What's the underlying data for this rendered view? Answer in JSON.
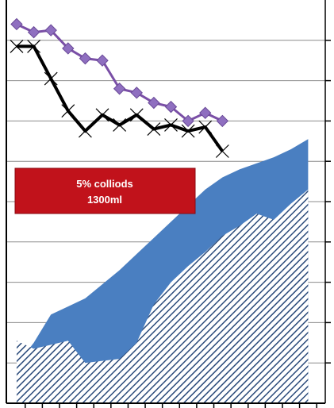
{
  "chart_data": {
    "type": "line",
    "x": [
      1,
      2,
      3,
      4,
      5,
      6,
      7,
      8,
      9,
      10,
      11,
      12,
      13,
      14,
      15,
      16,
      17,
      18
    ],
    "xlim": [
      0.4,
      19
    ],
    "ylim": [
      0,
      10
    ],
    "grid": true,
    "series": [
      {
        "type": "line",
        "color": "#7a4fa6",
        "marker": "diamond",
        "x": [
          1,
          2,
          3,
          4,
          5,
          6,
          7,
          8,
          9,
          10,
          11,
          12,
          13
        ],
        "values": [
          9.4,
          9.2,
          9.25,
          8.8,
          8.55,
          8.5,
          7.8,
          7.7,
          7.45,
          7.35,
          7.0,
          7.2,
          7.0
        ]
      },
      {
        "type": "line",
        "color": "#000000",
        "marker": "x",
        "x": [
          1,
          2,
          3,
          4,
          5,
          6,
          7,
          8,
          9,
          10,
          11,
          12,
          13
        ],
        "values": [
          8.85,
          8.85,
          8.05,
          7.25,
          6.75,
          7.15,
          6.9,
          7.15,
          6.8,
          6.9,
          6.75,
          6.85,
          6.25
        ]
      },
      {
        "type": "area",
        "color": "#4a7fc1",
        "x": [
          1,
          2,
          3,
          4,
          5,
          6,
          7,
          8,
          9,
          10,
          11,
          12,
          13,
          14,
          15,
          16,
          17,
          18
        ],
        "values": [
          0.95,
          1.5,
          2.2,
          2.4,
          2.6,
          2.95,
          3.3,
          3.7,
          4.1,
          4.5,
          4.9,
          5.3,
          5.6,
          5.8,
          5.95,
          6.1,
          6.3,
          6.55
        ]
      },
      {
        "type": "area",
        "color": "#2a4a7a",
        "pattern": "diagonal-hatch",
        "x": [
          1,
          2,
          3,
          4,
          5,
          6,
          7,
          8,
          9,
          10,
          11,
          12,
          13,
          14,
          15,
          16,
          17,
          18
        ],
        "values": [
          1.55,
          1.35,
          1.45,
          1.55,
          1.0,
          1.05,
          1.1,
          1.5,
          2.45,
          3.0,
          3.4,
          3.75,
          4.15,
          4.4,
          4.7,
          4.55,
          4.95,
          5.3
        ]
      }
    ],
    "annotations": [
      {
        "line1": "5% colliods",
        "line2": "1300ml",
        "fill": "#c1121b",
        "text_color": "#ffffff"
      }
    ]
  }
}
